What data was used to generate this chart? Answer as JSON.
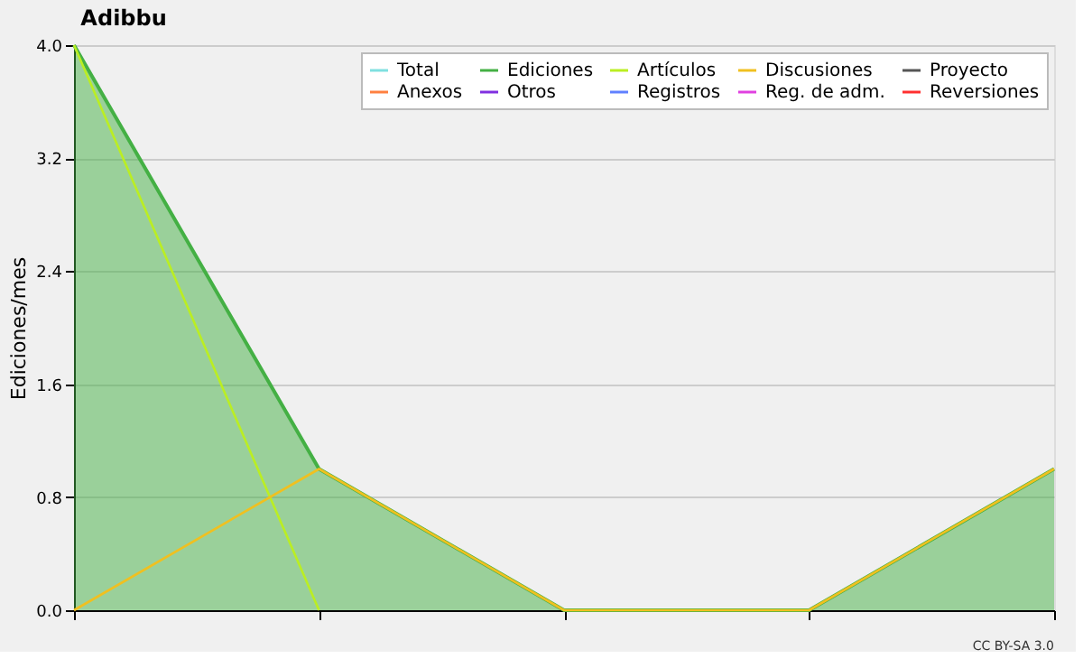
{
  "chart_data": {
    "type": "line",
    "title": "Adibbu",
    "ylabel": "Ediciones/mes",
    "categories": [
      null,
      null,
      null,
      null,
      null
    ],
    "ylim": [
      0,
      4
    ],
    "yticks": [
      {
        "value": 0,
        "label": "0.0"
      },
      {
        "value": 0.8,
        "label": "0.8"
      },
      {
        "value": 1.6,
        "label": "1.6"
      },
      {
        "value": 2.4,
        "label": "2.4"
      },
      {
        "value": 3.2,
        "label": "3.2"
      },
      {
        "value": 4,
        "label": "4.0"
      }
    ],
    "grid": "y",
    "legend": "top right",
    "marker": "none",
    "line_style": "solid",
    "annotations": [
      "CC BY-SA 3.0"
    ],
    "series": [
      {
        "name": "Total",
        "color": "#80e0e0",
        "values": [
          null,
          null,
          null,
          null,
          null
        ]
      },
      {
        "name": "Ediciones",
        "color": "#44b044",
        "type": "area",
        "values": [
          4,
          1,
          0,
          0,
          1
        ]
      },
      {
        "name": "Artículos",
        "color": "#bbee22",
        "values": [
          4,
          0,
          null,
          null,
          null
        ]
      },
      {
        "name": "Discusiones",
        "color": "#f0c020",
        "values": [
          0,
          1,
          0,
          0,
          1
        ]
      },
      {
        "name": "Proyecto",
        "color": "#555555",
        "values": [
          null,
          null,
          null,
          null,
          null
        ]
      },
      {
        "name": "Anexos",
        "color": "#ff8040",
        "values": [
          null,
          null,
          null,
          null,
          null
        ]
      },
      {
        "name": "Otros",
        "color": "#8030e0",
        "values": [
          null,
          null,
          null,
          null,
          null
        ]
      },
      {
        "name": "Registros",
        "color": "#6080ff",
        "values": [
          null,
          null,
          null,
          null,
          null
        ]
      },
      {
        "name": "Reg. de adm.",
        "color": "#e040e0",
        "values": [
          null,
          null,
          null,
          null,
          null
        ]
      },
      {
        "name": "Reversiones",
        "color": "#ff3030",
        "values": [
          null,
          null,
          null,
          null,
          null
        ]
      }
    ]
  }
}
